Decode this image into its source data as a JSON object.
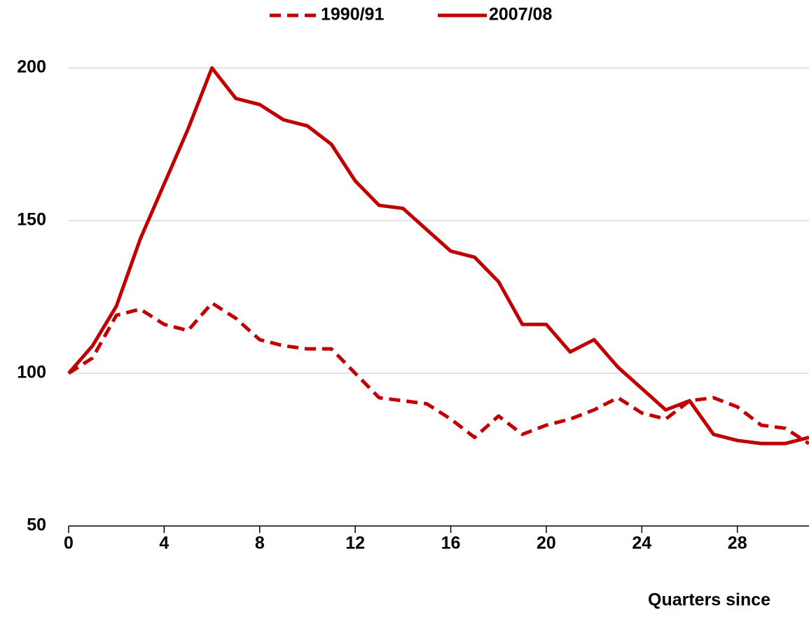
{
  "chart_data": {
    "type": "line",
    "x": [
      0,
      1,
      2,
      3,
      4,
      5,
      6,
      7,
      8,
      9,
      10,
      11,
      12,
      13,
      14,
      15,
      16,
      17,
      18,
      19,
      20,
      21,
      22,
      23,
      24,
      25,
      26,
      27,
      28,
      29,
      30,
      31
    ],
    "series": [
      {
        "name": "1990/91",
        "color": "#c00000",
        "line_style": "dashed",
        "values": [
          100,
          105,
          119,
          121,
          116,
          114,
          123,
          118,
          111,
          109,
          108,
          108,
          100,
          92,
          91,
          90,
          85,
          79,
          86,
          80,
          83,
          85,
          88,
          92,
          87,
          85,
          91,
          92,
          89,
          83,
          82,
          77
        ]
      },
      {
        "name": "2007/08",
        "color": "#c00000",
        "line_style": "solid",
        "values": [
          100,
          109,
          122,
          144,
          162,
          180,
          200,
          190,
          188,
          183,
          181,
          175,
          163,
          155,
          154,
          147,
          140,
          138,
          130,
          116,
          116,
          107,
          111,
          102,
          95,
          88,
          91,
          80,
          78,
          77,
          77,
          79
        ]
      }
    ],
    "x_label": "Quarters since",
    "xlim": [
      0,
      31
    ],
    "xticks": [
      0,
      4,
      8,
      12,
      16,
      20,
      24,
      28
    ],
    "ylim": [
      50,
      200
    ],
    "yticks": [
      50,
      100,
      150,
      200
    ],
    "grid": true,
    "legend": "top"
  }
}
